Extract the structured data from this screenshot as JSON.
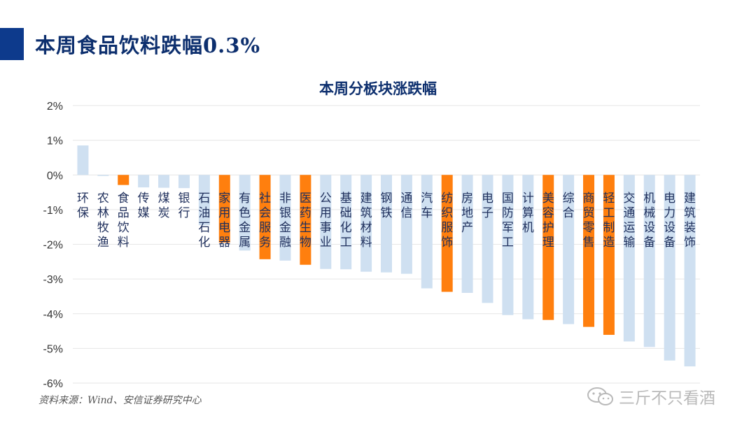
{
  "header": {
    "title": "本周食品饮料跌幅0.3%"
  },
  "footer": {
    "source": "资料来源：Wind、安信证券研究中心",
    "watermark": "三斤不只看酒"
  },
  "colors": {
    "accent": "#0d3a8c",
    "bar_default": "#cfe0f1",
    "bar_highlight": "#ff7f0e",
    "title": "#0d2f6e"
  },
  "chart_data": {
    "type": "bar",
    "title": "本周分板块涨跌幅",
    "xlabel": "",
    "ylabel": "",
    "ylim": [
      -6,
      2
    ],
    "yticks": [
      2,
      1,
      0,
      -1,
      -2,
      -3,
      -4,
      -5,
      -6
    ],
    "ytick_labels": [
      "2%",
      "1%",
      "0%",
      "-1%",
      "-2%",
      "-3%",
      "-4%",
      "-5%",
      "-6%"
    ],
    "grid": true,
    "categories": [
      "环保",
      "农林牧渔",
      "食品饮料",
      "传媒",
      "煤炭",
      "银行",
      "石油石化",
      "家用电器",
      "有色金属",
      "社会服务",
      "非银金融",
      "医药生物",
      "公用事业",
      "基础化工",
      "建筑材料",
      "钢铁",
      "通信",
      "汽车",
      "纺织服饰",
      "房地产",
      "电子",
      "国防军工",
      "计算机",
      "美容护理",
      "综合",
      "商贸零售",
      "轻工制造",
      "交通运输",
      "机械设备",
      "电力设备",
      "建筑装饰"
    ],
    "values": [
      0.85,
      -0.03,
      -0.29,
      -0.36,
      -0.37,
      -0.38,
      -1.45,
      -1.95,
      -2.18,
      -2.43,
      -2.47,
      -2.59,
      -2.71,
      -2.72,
      -2.79,
      -2.81,
      -2.85,
      -3.27,
      -3.37,
      -3.4,
      -3.69,
      -4.04,
      -4.16,
      -4.18,
      -4.3,
      -4.38,
      -4.61,
      -4.8,
      -4.96,
      -5.35,
      -5.52
    ],
    "highlight": [
      "食品饮料",
      "家用电器",
      "社会服务",
      "医药生物",
      "纺织服饰",
      "美容护理",
      "商贸零售",
      "轻工制造"
    ]
  }
}
